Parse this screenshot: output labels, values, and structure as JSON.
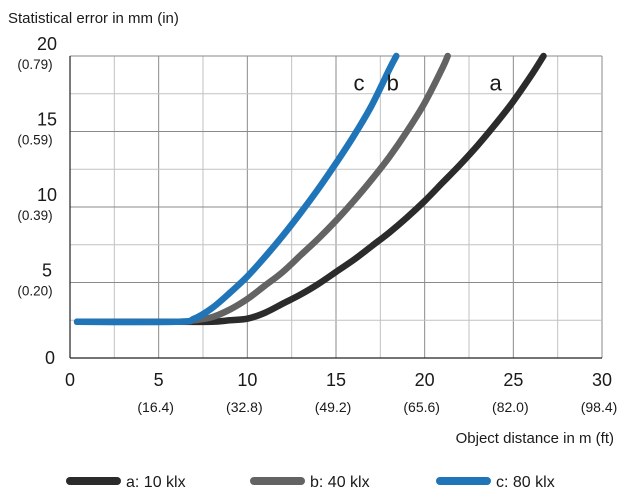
{
  "chart_data": {
    "type": "line",
    "ylabel": "Statistical error in mm (in)",
    "xlabel": "Object distance in m (ft)",
    "xlim": [
      0,
      30
    ],
    "ylim": [
      0,
      20
    ],
    "grid": true,
    "legend_position": "bottom",
    "x_ticks": [
      {
        "value": 0,
        "label": "0",
        "sub": ""
      },
      {
        "value": 5,
        "label": "5",
        "sub": "(16.4)"
      },
      {
        "value": 10,
        "label": "10",
        "sub": "(32.8)"
      },
      {
        "value": 15,
        "label": "15",
        "sub": "(49.2)"
      },
      {
        "value": 20,
        "label": "20",
        "sub": "(65.6)"
      },
      {
        "value": 25,
        "label": "25",
        "sub": "(82.0)"
      },
      {
        "value": 30,
        "label": "30",
        "sub": "(98.4)"
      }
    ],
    "y_ticks": [
      {
        "value": 0,
        "label": "0",
        "sub": ""
      },
      {
        "value": 5,
        "label": "5",
        "sub": "(0.20)"
      },
      {
        "value": 10,
        "label": "10",
        "sub": "(0.39)"
      },
      {
        "value": 15,
        "label": "15",
        "sub": "(0.59)"
      },
      {
        "value": 20,
        "label": "20",
        "sub": "(0.79)"
      }
    ],
    "series": [
      {
        "name": "a: 10 klx",
        "tag": "a",
        "color": "#2b2b2b",
        "x": [
          0.4,
          6,
          8,
          9,
          10,
          11,
          12,
          13,
          14,
          15,
          16,
          17,
          18,
          19,
          20,
          21,
          22,
          23,
          24,
          25,
          26,
          26.7
        ],
        "y": [
          2.4,
          2.4,
          2.4,
          2.5,
          2.6,
          3.0,
          3.6,
          4.2,
          4.9,
          5.7,
          6.5,
          7.4,
          8.3,
          9.3,
          10.4,
          11.6,
          12.8,
          14.1,
          15.5,
          17.0,
          18.7,
          20.0
        ]
      },
      {
        "name": "b: 40 klx",
        "tag": "b",
        "color": "#636363",
        "x": [
          0.4,
          6,
          7,
          8,
          9,
          10,
          11,
          12,
          13,
          14,
          15,
          16,
          17,
          18,
          19,
          20,
          21,
          21.3
        ],
        "y": [
          2.4,
          2.4,
          2.5,
          2.7,
          3.2,
          3.9,
          4.8,
          5.7,
          6.8,
          7.9,
          9.1,
          10.4,
          11.8,
          13.3,
          15.0,
          16.9,
          19.2,
          20.0
        ]
      },
      {
        "name": "c: 80 klx",
        "tag": "c",
        "color": "#1f75b8",
        "x": [
          0.4,
          6,
          7,
          8,
          9,
          10,
          11,
          12,
          13,
          14,
          15,
          16,
          17,
          18,
          18.4
        ],
        "y": [
          2.4,
          2.4,
          2.6,
          3.3,
          4.3,
          5.4,
          6.7,
          8.1,
          9.6,
          11.2,
          12.9,
          14.7,
          16.7,
          19.1,
          20.0
        ]
      }
    ]
  }
}
